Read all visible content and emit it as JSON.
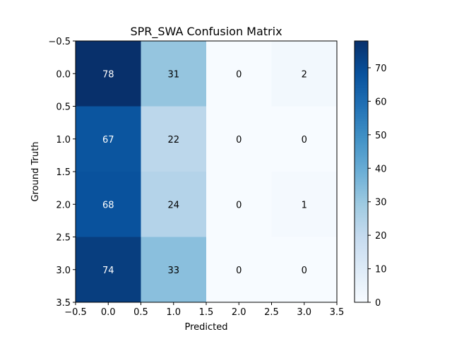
{
  "chart_data": {
    "type": "heatmap",
    "title": "SPR_SWA Confusion Matrix",
    "xlabel": "Predicted",
    "ylabel": "Ground Truth",
    "x_ticks": [
      "−0.5",
      "0.0",
      "0.5",
      "1.0",
      "1.5",
      "2.0",
      "2.5",
      "3.0",
      "3.5"
    ],
    "y_ticks": [
      "−0.5",
      "0.0",
      "0.5",
      "1.0",
      "1.5",
      "2.0",
      "2.5",
      "3.0",
      "3.5"
    ],
    "rows": [
      0,
      1,
      2,
      3
    ],
    "cols": [
      0,
      1,
      2,
      3
    ],
    "values": [
      [
        78,
        31,
        0,
        2
      ],
      [
        67,
        22,
        0,
        0
      ],
      [
        68,
        24,
        0,
        1
      ],
      [
        74,
        33,
        0,
        0
      ]
    ],
    "colormap": "Blues",
    "vmin": 0,
    "vmax": 78,
    "colorbar_ticks": [
      "0",
      "10",
      "20",
      "30",
      "40",
      "50",
      "60",
      "70"
    ],
    "colorbar_tick_values": [
      0,
      10,
      20,
      30,
      40,
      50,
      60,
      70
    ],
    "text_colors": {
      "dark": "#ffffff",
      "light": "#000000"
    }
  }
}
